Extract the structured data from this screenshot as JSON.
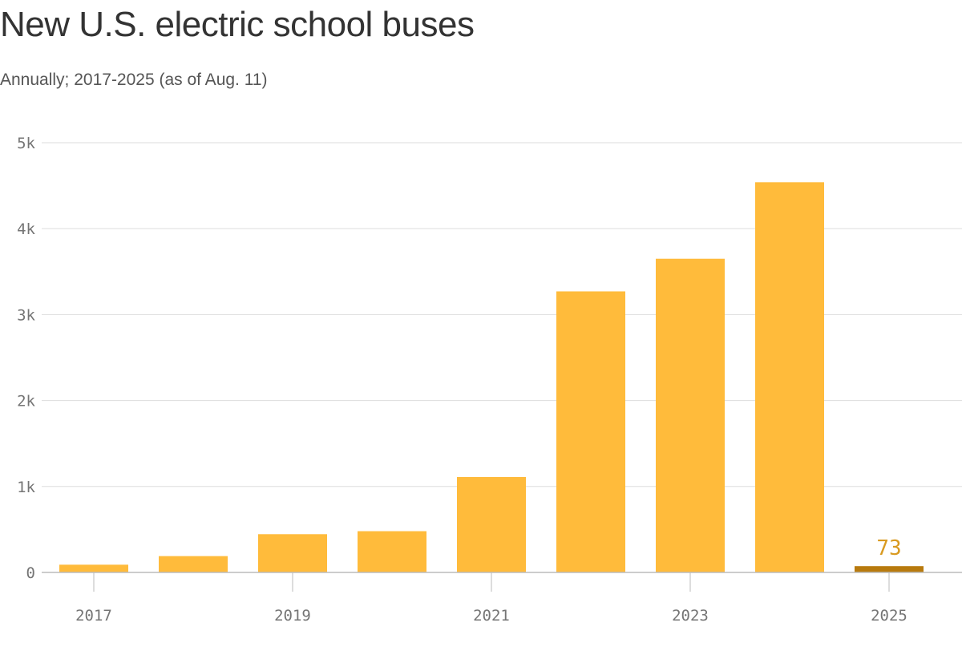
{
  "chart_data": {
    "type": "bar",
    "title": "New U.S. electric school buses",
    "subtitle": "Annually; 2017-2025 (as of Aug. 11)",
    "categories": [
      "2017",
      "2018",
      "2019",
      "2020",
      "2021",
      "2022",
      "2023",
      "2024",
      "2025"
    ],
    "x_tick_labels": [
      "2017",
      "2019",
      "2021",
      "2023",
      "2025"
    ],
    "values": [
      90,
      190,
      445,
      480,
      1110,
      3270,
      3650,
      4540,
      73
    ],
    "highlight": {
      "category": "2025",
      "value": 73,
      "label": "73"
    },
    "y_ticks": [
      0,
      1000,
      2000,
      3000,
      4000,
      5000
    ],
    "y_tick_labels": [
      "0",
      "1k",
      "2k",
      "3k",
      "4k",
      "5k"
    ],
    "ylim": [
      0,
      5000
    ],
    "xlabel": "",
    "ylabel": "",
    "grid": true,
    "colors": {
      "bar": "#ffbb3b",
      "highlight_bar": "#b87a0e",
      "highlight_label": "#d99a20",
      "grid": "#dddddd",
      "axis": "#bbbbbb"
    }
  }
}
